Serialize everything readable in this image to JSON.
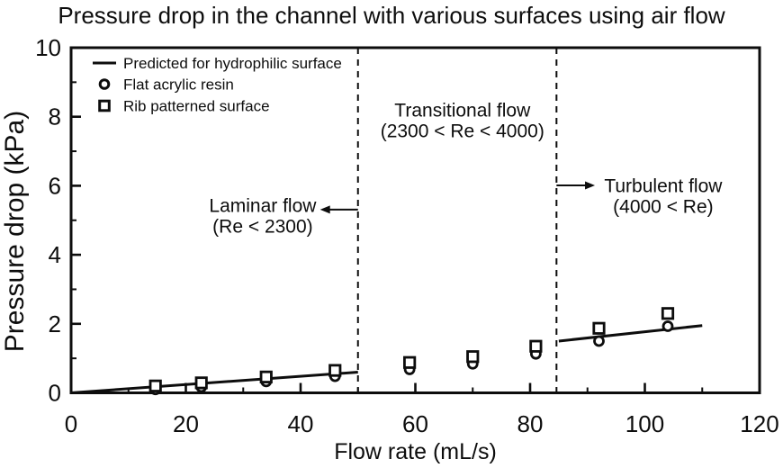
{
  "chart_data": {
    "type": "scatter",
    "title": "Pressure drop in the channel with various surfaces using air flow",
    "xlabel": "Flow rate (mL/s)",
    "ylabel": "Pressure drop (kPa)",
    "xlim": [
      0,
      120
    ],
    "ylim": [
      0,
      10
    ],
    "x_major_ticks": [
      0,
      20,
      40,
      60,
      80,
      100,
      120
    ],
    "x_minor_tick_step": 10,
    "y_major_ticks": [
      0,
      2,
      4,
      6,
      8,
      10
    ],
    "y_minor_tick_step": 1,
    "grid": false,
    "legend_position": "top-left-inside",
    "series": [
      {
        "name": "Predicted for hydrophilic surface",
        "kind": "line",
        "segments": [
          [
            [
              0,
              0
            ],
            [
              50,
              0.6
            ]
          ],
          [
            [
              85,
              1.5
            ],
            [
              110,
              1.95
            ]
          ]
        ]
      },
      {
        "name": "Flat acrylic resin",
        "kind": "scatter",
        "marker": "circle",
        "x": [
          14.7,
          22.7,
          34,
          46,
          59,
          70,
          81,
          92,
          104
        ],
        "y": [
          0.1,
          0.17,
          0.33,
          0.48,
          0.68,
          0.84,
          1.13,
          1.5,
          1.93
        ]
      },
      {
        "name": "Rib patterned surface",
        "kind": "scatter",
        "marker": "square",
        "x": [
          14.7,
          22.7,
          34,
          46,
          59,
          70,
          81,
          92,
          104
        ],
        "y": [
          0.2,
          0.29,
          0.46,
          0.65,
          0.88,
          1.05,
          1.35,
          1.87,
          2.3
        ]
      }
    ],
    "region_dividers": [
      {
        "x": 50,
        "style": "dashed"
      },
      {
        "x": 84.6,
        "style": "dashed"
      }
    ],
    "annotations": [
      {
        "id": "laminar-flow",
        "lines": [
          "Laminar flow",
          "(Re < 2300)"
        ],
        "x": 33.4,
        "y": 5.44,
        "arrow": {
          "from_x": 50,
          "to_x": 43.4,
          "y": 5.31,
          "direction": "left"
        }
      },
      {
        "id": "transitional-flow",
        "lines": [
          "Transitional flow",
          "(2300 < Re < 4000)"
        ],
        "x": 68.2,
        "y": 8.2
      },
      {
        "id": "turbulent-flow",
        "lines": [
          "Turbulent flow",
          "(4000 < Re)"
        ],
        "x": 103.2,
        "y": 6.01,
        "arrow": {
          "from_x": 84.6,
          "to_x": 91.3,
          "y": 6.01,
          "direction": "right"
        }
      }
    ],
    "colors": {
      "ink": "#0d0d0d",
      "background": "#ffffff"
    }
  }
}
